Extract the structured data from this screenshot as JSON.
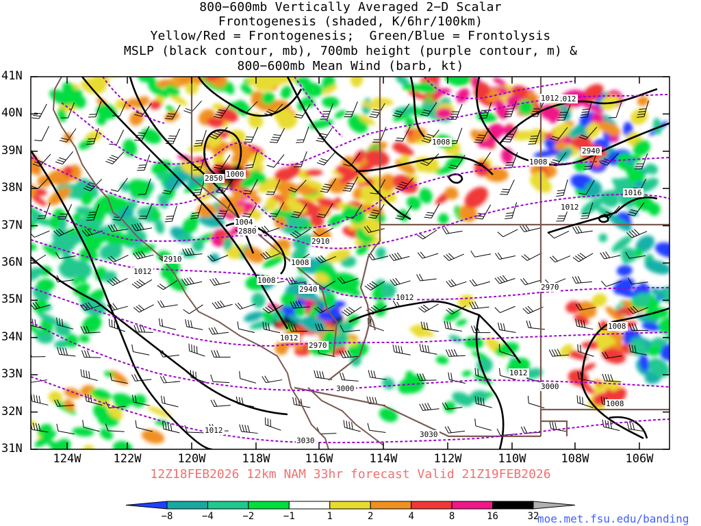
{
  "title_lines": [
    "800−600mb Vertically Averaged 2−D Scalar",
    "Frontogenesis (shaded, K/6hr/100km)",
    "Yellow/Red = Frontogenesis;  Green/Blue = Frontolysis",
    "MSLP (black contour, mb), 700mb height (purple contour, m) &",
    "800−600mb Mean Wind (barb, kt)"
  ],
  "valid_line": "12Z18FEB2026 12km NAM 33hr forecast Valid 21Z19FEB2026",
  "url": "moe.met.fsu.edu/banding",
  "lat_labels": [
    "41N",
    "40N",
    "39N",
    "38N",
    "37N",
    "36N",
    "35N",
    "34N",
    "33N",
    "32N",
    "31N"
  ],
  "lon_labels": [
    "124W",
    "122W",
    "120W",
    "118W",
    "116W",
    "114W",
    "112W",
    "110W",
    "108W",
    "106W"
  ],
  "colorbar": {
    "labels": [
      "−8",
      "−4",
      "−2",
      "−1",
      "1",
      "2",
      "4",
      "8",
      "16",
      "32"
    ],
    "colors": [
      "#2040ff",
      "#18a8a0",
      "#20c890",
      "#00e040",
      "#ffffff",
      "#e8dc30",
      "#f09020",
      "#f03838",
      "#f01888",
      "#000000",
      "#b0b0b0"
    ]
  },
  "pressure_labels": [
    "1012",
    "1000",
    "1004",
    "1008",
    "1008",
    "1012",
    "1012",
    "1008",
    "1012",
    "1012",
    "1008",
    "1012",
    "1016",
    "1008",
    "1008",
    "1012",
    "1012"
  ],
  "height_labels": [
    "2850",
    "2880",
    "2910",
    "2910",
    "2940",
    "2970",
    "3000",
    "3030",
    "3030",
    "2940",
    "2970",
    "3000"
  ]
}
